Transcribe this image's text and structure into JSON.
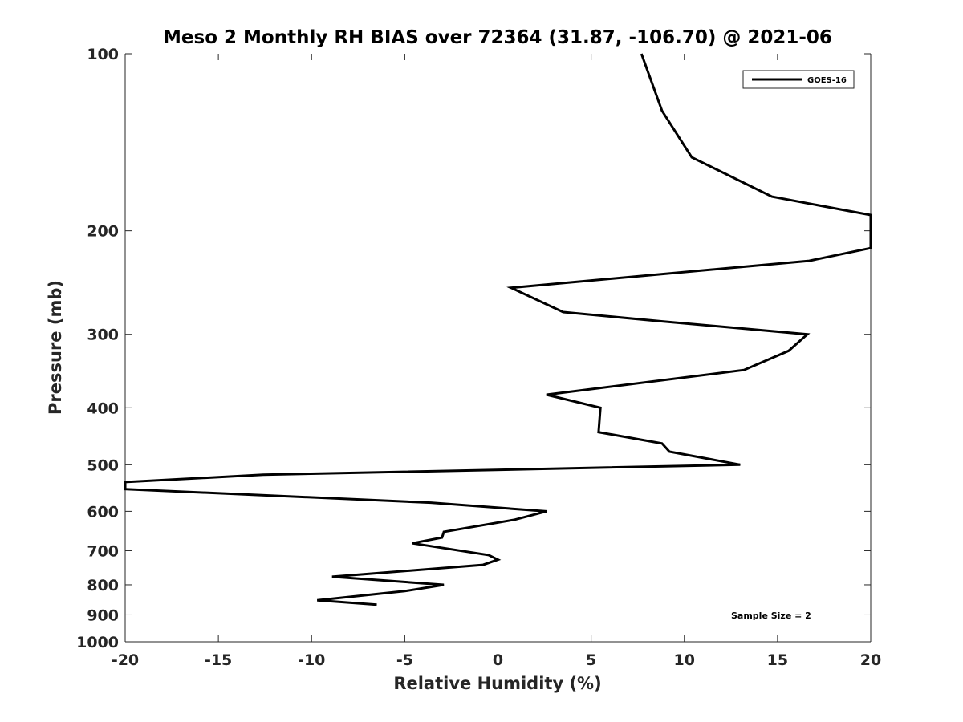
{
  "chart_data": {
    "type": "line",
    "title": "Meso 2 Monthly RH BIAS over 72364 (31.87, -106.70) @ 2021-06",
    "xlabel": "Relative Humidity (%)",
    "ylabel": "Pressure (mb)",
    "xlim": [
      -20,
      20
    ],
    "ylim": [
      100,
      1000
    ],
    "yscale": "log",
    "y_reversed": true,
    "xticks": [
      "-20",
      "-15",
      "-10",
      "-5",
      "0",
      "5",
      "10",
      "15",
      "20"
    ],
    "yticks": [
      "100",
      "200",
      "300",
      "400",
      "500",
      "600",
      "700",
      "800",
      "900",
      "1000"
    ],
    "grid": false,
    "legend_position": "top-right",
    "annotation": "Sample Size = 2",
    "series": [
      {
        "name": "GOES-16",
        "color": "#000000",
        "x": [
          7.7,
          8.8,
          10.4,
          14.7,
          20.0,
          20.0,
          16.7,
          0.7,
          3.5,
          8.7,
          16.6,
          15.6,
          13.2,
          2.6,
          5.5,
          5.4,
          8.8,
          9.2,
          13.0,
          -12.6,
          -20.0,
          -20.0,
          -3.6,
          2.6,
          0.9,
          -2.9,
          -3.0,
          -4.6,
          -0.5,
          0.0,
          -0.8,
          -8.9,
          -2.9,
          -5.0,
          -9.7,
          -6.5
        ],
        "y": [
          100,
          125,
          150,
          175,
          188,
          214,
          225,
          250,
          275,
          285,
          300,
          320,
          345,
          380,
          400,
          440,
          460,
          475,
          500,
          520,
          535,
          550,
          580,
          600,
          620,
          650,
          665,
          680,
          712,
          725,
          740,
          775,
          800,
          820,
          850,
          865
        ]
      }
    ]
  }
}
